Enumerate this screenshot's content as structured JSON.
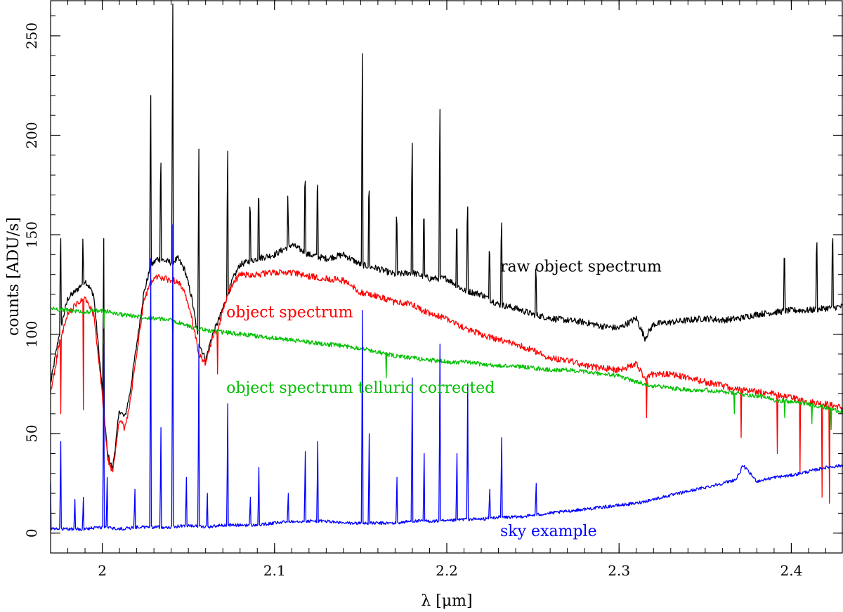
{
  "chart_data": {
    "type": "line",
    "title": "",
    "xlabel": "λ [μm]",
    "ylabel": "counts [ADU/s]",
    "xlim": [
      1.97,
      2.43
    ],
    "ylim": [
      -10,
      268
    ],
    "xticks": [
      2.0,
      2.1,
      2.2,
      2.3,
      2.4
    ],
    "xtick_labels": [
      "2",
      "2.1",
      "2.2",
      "2.3",
      "2.4"
    ],
    "yticks": [
      0,
      50,
      100,
      150,
      200,
      250
    ],
    "ytick_labels": [
      "0",
      "50",
      "100",
      "150",
      "200",
      "250"
    ],
    "grid": false,
    "series": [
      {
        "name": "raw object spectrum",
        "color": "#000000",
        "x": [
          1.97,
          1.975,
          1.98,
          1.985,
          1.99,
          1.995,
          2.0,
          2.003,
          2.006,
          2.01,
          2.013,
          2.016,
          2.02,
          2.024,
          2.028,
          2.032,
          2.036,
          2.04,
          2.044,
          2.048,
          2.052,
          2.056,
          2.06,
          2.064,
          2.068,
          2.072,
          2.076,
          2.08,
          2.09,
          2.1,
          2.11,
          2.12,
          2.13,
          2.14,
          2.15,
          2.16,
          2.17,
          2.18,
          2.19,
          2.2,
          2.21,
          2.22,
          2.23,
          2.24,
          2.25,
          2.26,
          2.27,
          2.28,
          2.29,
          2.3,
          2.31,
          2.315,
          2.32,
          2.33,
          2.34,
          2.35,
          2.36,
          2.37,
          2.38,
          2.39,
          2.4,
          2.41,
          2.42,
          2.43
        ],
        "y": [
          75,
          100,
          118,
          122,
          127,
          120,
          72,
          40,
          32,
          62,
          58,
          70,
          95,
          120,
          134,
          138,
          137,
          136,
          138,
          132,
          118,
          96,
          87,
          100,
          108,
          118,
          128,
          135,
          138,
          140,
          145,
          140,
          138,
          140,
          135,
          133,
          130,
          131,
          128,
          128,
          122,
          120,
          115,
          113,
          110,
          108,
          107,
          106,
          104,
          103,
          108,
          98,
          105,
          106,
          107,
          108,
          107,
          108,
          110,
          111,
          112,
          112,
          113,
          114
        ],
        "peaks": [
          [
            1.976,
            148
          ],
          [
            1.989,
            136
          ],
          [
            2.001,
            148
          ],
          [
            2.028,
            220
          ],
          [
            2.034,
            186
          ],
          [
            2.041,
            266
          ],
          [
            2.056,
            193
          ],
          [
            2.073,
            192
          ],
          [
            2.086,
            161
          ],
          [
            2.091,
            168
          ],
          [
            2.108,
            157
          ],
          [
            2.118,
            177
          ],
          [
            2.125,
            175
          ],
          [
            2.151,
            241
          ],
          [
            2.155,
            172
          ],
          [
            2.171,
            155
          ],
          [
            2.18,
            196
          ],
          [
            2.187,
            158
          ],
          [
            2.196,
            213
          ],
          [
            2.206,
            153
          ],
          [
            2.212,
            164
          ],
          [
            2.225,
            140
          ],
          [
            2.232,
            156
          ],
          [
            2.252,
            128
          ],
          [
            2.396,
            138
          ],
          [
            2.415,
            146
          ],
          [
            2.424,
            148
          ]
        ]
      },
      {
        "name": "object spectrum",
        "color": "#ff0000",
        "x": [
          1.97,
          1.975,
          1.98,
          1.985,
          1.99,
          1.995,
          2.0,
          2.003,
          2.006,
          2.01,
          2.013,
          2.016,
          2.02,
          2.024,
          2.028,
          2.032,
          2.036,
          2.04,
          2.044,
          2.048,
          2.052,
          2.056,
          2.06,
          2.064,
          2.068,
          2.072,
          2.076,
          2.08,
          2.09,
          2.1,
          2.11,
          2.12,
          2.13,
          2.14,
          2.15,
          2.16,
          2.17,
          2.18,
          2.19,
          2.2,
          2.21,
          2.22,
          2.23,
          2.24,
          2.25,
          2.26,
          2.27,
          2.28,
          2.29,
          2.3,
          2.31,
          2.315,
          2.32,
          2.33,
          2.34,
          2.35,
          2.36,
          2.37,
          2.38,
          2.39,
          2.4,
          2.41,
          2.42,
          2.43
        ],
        "y": [
          70,
          95,
          110,
          115,
          118,
          110,
          70,
          38,
          30,
          58,
          52,
          65,
          90,
          116,
          126,
          129,
          128,
          127,
          127,
          120,
          108,
          90,
          85,
          98,
          105,
          118,
          126,
          130,
          130,
          131,
          131,
          129,
          128,
          127,
          121,
          119,
          116,
          115,
          110,
          108,
          103,
          100,
          97,
          95,
          92,
          88,
          87,
          84,
          83,
          82,
          85,
          78,
          80,
          80,
          78,
          76,
          74,
          72,
          71,
          70,
          68,
          66,
          65,
          63
        ],
        "dips": [
          [
            1.976,
            60
          ],
          [
            1.989,
            62
          ],
          [
            2.067,
            80
          ],
          [
            2.316,
            58
          ],
          [
            2.371,
            48
          ],
          [
            2.392,
            40
          ],
          [
            2.405,
            30
          ],
          [
            2.418,
            18
          ],
          [
            2.422,
            15
          ]
        ]
      },
      {
        "name": "object spectrum telluric corrected",
        "color": "#00c000",
        "x": [
          1.97,
          1.98,
          1.99,
          2.0,
          2.01,
          2.02,
          2.03,
          2.04,
          2.05,
          2.06,
          2.07,
          2.08,
          2.09,
          2.1,
          2.11,
          2.12,
          2.13,
          2.14,
          2.15,
          2.16,
          2.17,
          2.18,
          2.19,
          2.2,
          2.21,
          2.22,
          2.23,
          2.24,
          2.25,
          2.26,
          2.27,
          2.28,
          2.29,
          2.3,
          2.31,
          2.32,
          2.33,
          2.34,
          2.35,
          2.36,
          2.37,
          2.38,
          2.39,
          2.4,
          2.41,
          2.42,
          2.43
        ],
        "y": [
          113,
          112,
          111,
          112,
          110,
          109,
          108,
          107,
          104,
          102,
          101,
          100,
          99,
          98,
          97,
          96,
          95,
          94,
          93,
          91,
          89,
          88,
          87,
          86,
          86,
          85,
          84,
          84,
          83,
          82,
          82,
          81,
          80,
          79,
          76,
          74,
          73,
          72,
          72,
          71,
          70,
          69,
          67,
          66,
          65,
          63,
          61
        ],
        "dips": [
          [
            2.001,
            103
          ],
          [
            2.041,
            95
          ],
          [
            2.066,
            100
          ],
          [
            2.165,
            78
          ],
          [
            2.367,
            60
          ],
          [
            2.396,
            58
          ],
          [
            2.412,
            55
          ],
          [
            2.423,
            52
          ]
        ]
      },
      {
        "name": "sky example",
        "color": "#0000ff",
        "x": [
          1.97,
          1.98,
          1.99,
          2.0,
          2.01,
          2.02,
          2.03,
          2.04,
          2.05,
          2.06,
          2.07,
          2.08,
          2.09,
          2.1,
          2.11,
          2.12,
          2.13,
          2.14,
          2.15,
          2.16,
          2.17,
          2.18,
          2.19,
          2.2,
          2.21,
          2.22,
          2.23,
          2.24,
          2.25,
          2.26,
          2.27,
          2.28,
          2.29,
          2.3,
          2.31,
          2.32,
          2.33,
          2.34,
          2.35,
          2.36,
          2.368,
          2.372,
          2.38,
          2.39,
          2.4,
          2.41,
          2.42,
          2.43
        ],
        "y": [
          2,
          2,
          2,
          3,
          2,
          3,
          3,
          3,
          4,
          3,
          4,
          4,
          4,
          5,
          6,
          6,
          6,
          5,
          5,
          5,
          5,
          6,
          6,
          6,
          7,
          7,
          8,
          8,
          9,
          10,
          11,
          12,
          13,
          14,
          15,
          17,
          19,
          21,
          23,
          25,
          27,
          34,
          26,
          28,
          29,
          31,
          33,
          34
        ],
        "peaks": [
          [
            1.97,
            25
          ],
          [
            1.976,
            46
          ],
          [
            1.984,
            17
          ],
          [
            1.989,
            18
          ],
          [
            2.001,
            95
          ],
          [
            2.003,
            28
          ],
          [
            2.019,
            22
          ],
          [
            2.028,
            138
          ],
          [
            2.034,
            53
          ],
          [
            2.041,
            155
          ],
          [
            2.049,
            28
          ],
          [
            2.056,
            95
          ],
          [
            2.061,
            20
          ],
          [
            2.073,
            65
          ],
          [
            2.086,
            18
          ],
          [
            2.091,
            33
          ],
          [
            2.108,
            20
          ],
          [
            2.118,
            41
          ],
          [
            2.125,
            46
          ],
          [
            2.151,
            112
          ],
          [
            2.155,
            50
          ],
          [
            2.171,
            28
          ],
          [
            2.18,
            78
          ],
          [
            2.187,
            40
          ],
          [
            2.196,
            95
          ],
          [
            2.206,
            40
          ],
          [
            2.212,
            75
          ],
          [
            2.225,
            22
          ],
          [
            2.232,
            48
          ],
          [
            2.252,
            25
          ]
        ]
      }
    ],
    "annotations": [
      {
        "text": "raw object spectrum",
        "color": "#000000",
        "x": 2.231,
        "y": 134
      },
      {
        "text": "object spectrum",
        "color": "#ff0000",
        "x": 2.072,
        "y": 111
      },
      {
        "text": "object spectrum telluric corrected",
        "color": "#00c000",
        "x": 2.072,
        "y": 73
      },
      {
        "text": "sky example",
        "color": "#0000ff",
        "x": 2.231,
        "y": 1
      }
    ]
  }
}
